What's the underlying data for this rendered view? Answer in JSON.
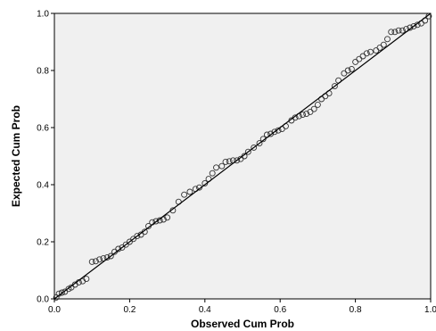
{
  "chart_data": {
    "type": "scatter",
    "xlabel": "Observed Cum Prob",
    "ylabel": "Expected Cum Prob",
    "xlim": [
      0.0,
      1.0
    ],
    "ylim": [
      0.0,
      1.0
    ],
    "x_ticks": [
      "0.0",
      "0.2",
      "0.4",
      "0.6",
      "0.8",
      "1.0"
    ],
    "y_ticks": [
      "0.0",
      "0.2",
      "0.4",
      "0.6",
      "0.8",
      "1.0"
    ],
    "grid": false,
    "plot_background": "#f0f0f0",
    "marker": "open-circle",
    "reference_line": {
      "from": [
        0,
        0
      ],
      "to": [
        1,
        1
      ]
    },
    "points": [
      [
        0.005,
        0.005
      ],
      [
        0.012,
        0.018
      ],
      [
        0.02,
        0.022
      ],
      [
        0.028,
        0.025
      ],
      [
        0.038,
        0.035
      ],
      [
        0.045,
        0.04
      ],
      [
        0.055,
        0.05
      ],
      [
        0.065,
        0.058
      ],
      [
        0.075,
        0.062
      ],
      [
        0.085,
        0.07
      ],
      [
        0.1,
        0.13
      ],
      [
        0.11,
        0.132
      ],
      [
        0.12,
        0.138
      ],
      [
        0.13,
        0.142
      ],
      [
        0.14,
        0.145
      ],
      [
        0.15,
        0.15
      ],
      [
        0.16,
        0.165
      ],
      [
        0.17,
        0.175
      ],
      [
        0.18,
        0.18
      ],
      [
        0.19,
        0.19
      ],
      [
        0.2,
        0.2
      ],
      [
        0.21,
        0.21
      ],
      [
        0.22,
        0.22
      ],
      [
        0.23,
        0.225
      ],
      [
        0.24,
        0.235
      ],
      [
        0.25,
        0.255
      ],
      [
        0.26,
        0.268
      ],
      [
        0.27,
        0.272
      ],
      [
        0.28,
        0.275
      ],
      [
        0.29,
        0.278
      ],
      [
        0.3,
        0.285
      ],
      [
        0.315,
        0.31
      ],
      [
        0.33,
        0.34
      ],
      [
        0.345,
        0.365
      ],
      [
        0.36,
        0.375
      ],
      [
        0.375,
        0.385
      ],
      [
        0.385,
        0.39
      ],
      [
        0.4,
        0.405
      ],
      [
        0.41,
        0.42
      ],
      [
        0.42,
        0.44
      ],
      [
        0.43,
        0.46
      ],
      [
        0.445,
        0.465
      ],
      [
        0.455,
        0.48
      ],
      [
        0.465,
        0.482
      ],
      [
        0.475,
        0.485
      ],
      [
        0.485,
        0.485
      ],
      [
        0.495,
        0.49
      ],
      [
        0.505,
        0.5
      ],
      [
        0.515,
        0.515
      ],
      [
        0.53,
        0.53
      ],
      [
        0.545,
        0.545
      ],
      [
        0.555,
        0.56
      ],
      [
        0.565,
        0.575
      ],
      [
        0.575,
        0.578
      ],
      [
        0.585,
        0.585
      ],
      [
        0.595,
        0.59
      ],
      [
        0.605,
        0.595
      ],
      [
        0.615,
        0.605
      ],
      [
        0.63,
        0.625
      ],
      [
        0.64,
        0.635
      ],
      [
        0.65,
        0.64
      ],
      [
        0.66,
        0.645
      ],
      [
        0.67,
        0.648
      ],
      [
        0.68,
        0.655
      ],
      [
        0.69,
        0.665
      ],
      [
        0.7,
        0.68
      ],
      [
        0.71,
        0.7
      ],
      [
        0.72,
        0.71
      ],
      [
        0.73,
        0.72
      ],
      [
        0.745,
        0.745
      ],
      [
        0.755,
        0.765
      ],
      [
        0.77,
        0.79
      ],
      [
        0.78,
        0.8
      ],
      [
        0.79,
        0.805
      ],
      [
        0.8,
        0.83
      ],
      [
        0.81,
        0.84
      ],
      [
        0.82,
        0.85
      ],
      [
        0.83,
        0.86
      ],
      [
        0.84,
        0.865
      ],
      [
        0.855,
        0.87
      ],
      [
        0.865,
        0.88
      ],
      [
        0.875,
        0.89
      ],
      [
        0.885,
        0.91
      ],
      [
        0.895,
        0.935
      ],
      [
        0.905,
        0.935
      ],
      [
        0.915,
        0.94
      ],
      [
        0.925,
        0.94
      ],
      [
        0.935,
        0.945
      ],
      [
        0.945,
        0.95
      ],
      [
        0.955,
        0.955
      ],
      [
        0.965,
        0.96
      ],
      [
        0.975,
        0.965
      ],
      [
        0.985,
        0.975
      ],
      [
        0.995,
        0.99
      ]
    ]
  }
}
